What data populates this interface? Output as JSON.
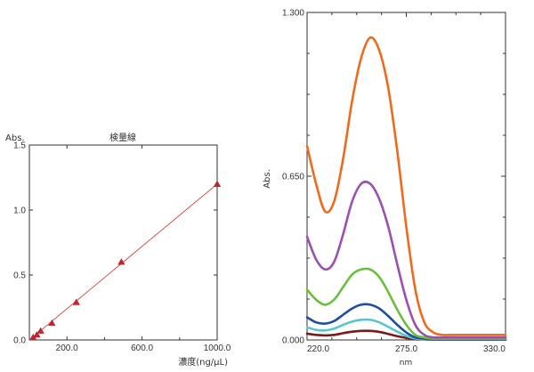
{
  "chart_data": [
    {
      "type": "scatter",
      "title": "検量線",
      "xlabel": "濃度(ng/μL)",
      "ylabel": "Abs.",
      "xlim": [
        0,
        1000
      ],
      "ylim": [
        0,
        1.5
      ],
      "x_ticks": [
        "200.0",
        "600.0",
        "1000.0"
      ],
      "x_tick_values": [
        200,
        600,
        1000
      ],
      "y_ticks": [
        "0.0",
        "0.5",
        "1.0",
        "1.5"
      ],
      "y_tick_values": [
        0,
        0.5,
        1.0,
        1.5
      ],
      "points": [
        {
          "x": 20,
          "y": 0.02
        },
        {
          "x": 40,
          "y": 0.04
        },
        {
          "x": 60,
          "y": 0.07
        },
        {
          "x": 120,
          "y": 0.13
        },
        {
          "x": 250,
          "y": 0.29
        },
        {
          "x": 490,
          "y": 0.6
        },
        {
          "x": 1000,
          "y": 1.2
        }
      ],
      "fit_line": {
        "x": [
          0,
          1000
        ],
        "y": [
          0.0,
          1.2
        ]
      },
      "marker_color": "#c0262d",
      "line_color": "#d9534f",
      "grid": false
    },
    {
      "type": "line",
      "title": "",
      "xlabel": "nm",
      "ylabel": "Abs.",
      "xlim": [
        220,
        330
      ],
      "ylim": [
        0,
        1.3
      ],
      "x_ticks": [
        "220.0",
        "275.0",
        "330.0"
      ],
      "x_tick_values": [
        220,
        275,
        330
      ],
      "y_ticks": [
        "0.000",
        "0.650",
        "1.300"
      ],
      "y_tick_values": [
        0,
        0.65,
        1.3
      ],
      "x": [
        220,
        225,
        230,
        235,
        240,
        245,
        250,
        255,
        260,
        265,
        270,
        275,
        280,
        285,
        290,
        295,
        300,
        310,
        320,
        330
      ],
      "series": [
        {
          "color": "#ef6a1a",
          "values": [
            0.77,
            0.62,
            0.51,
            0.55,
            0.72,
            0.95,
            1.12,
            1.2,
            1.15,
            1.0,
            0.75,
            0.45,
            0.2,
            0.07,
            0.03,
            0.02,
            0.02,
            0.02,
            0.02,
            0.02
          ]
        },
        {
          "color": "#9b4fae",
          "values": [
            0.41,
            0.32,
            0.28,
            0.31,
            0.42,
            0.55,
            0.62,
            0.62,
            0.56,
            0.45,
            0.3,
            0.16,
            0.06,
            0.02,
            0.01,
            0.01,
            0.01,
            0.01,
            0.01,
            0.01
          ]
        },
        {
          "color": "#6cbf3a",
          "values": [
            0.2,
            0.16,
            0.14,
            0.16,
            0.21,
            0.26,
            0.28,
            0.28,
            0.25,
            0.19,
            0.12,
            0.06,
            0.02,
            0.01,
            0.005,
            0.005,
            0.005,
            0.005,
            0.005,
            0.005
          ]
        },
        {
          "color": "#1f4ea0",
          "values": [
            0.09,
            0.07,
            0.065,
            0.075,
            0.1,
            0.125,
            0.14,
            0.14,
            0.125,
            0.095,
            0.06,
            0.03,
            0.01,
            0.005,
            0.003,
            0.003,
            0.003,
            0.003,
            0.003,
            0.003
          ]
        },
        {
          "color": "#5ac4cf",
          "values": [
            0.05,
            0.04,
            0.038,
            0.045,
            0.06,
            0.073,
            0.08,
            0.08,
            0.07,
            0.052,
            0.033,
            0.016,
            0.006,
            0.003,
            0.002,
            0.002,
            0.002,
            0.002,
            0.002,
            0.002
          ]
        },
        {
          "color": "#7a1a1a",
          "values": [
            0.025,
            0.02,
            0.018,
            0.02,
            0.027,
            0.033,
            0.036,
            0.036,
            0.032,
            0.024,
            0.015,
            0.008,
            0.003,
            0.002,
            0.001,
            0.001,
            0.001,
            0.001,
            0.001,
            0.001
          ]
        }
      ],
      "grid": false
    }
  ]
}
